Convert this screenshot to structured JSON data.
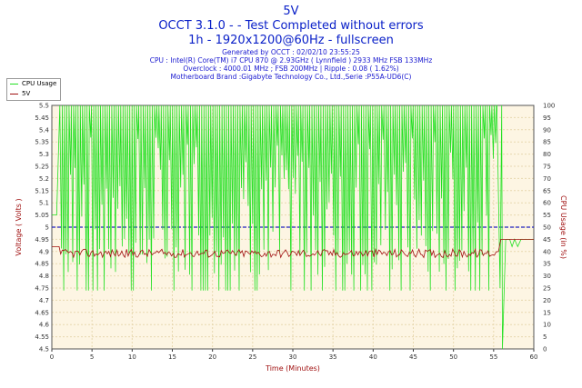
{
  "header": {
    "title_line1": "5V",
    "title_line2": "OCCT 3.1.0 -  - Test Completed without errors",
    "title_line3": "1h - 1920x1200@60Hz - fullscreen",
    "generated": "Generated by OCCT : 02/02/10 23:55:25",
    "cpu": "CPU : Intel(R) Core(TM) i7 CPU 870 @ 2.93GHz ( Lynnfield ) 2933 MHz FSB 133MHz",
    "overclock": "Overclock : 4000.01 MHz ; FSB 200MHz | Ripple : 0.08 ( 1.62%)",
    "motherboard": "Motherboard Brand :Gigabyte Technology Co., Ltd.,Serie :P55A-UD6(C)"
  },
  "legend": {
    "cpu_label": "CPU Usage",
    "v_label": "5V"
  },
  "colors": {
    "cpu": "#22e022",
    "voltage": "#a01010",
    "reference": "#2020c0",
    "left_axis": "#a01010",
    "plot_bg": "#fdf5e3",
    "grid": "#e8d8b0"
  },
  "chart_data": {
    "type": "line",
    "title": "5V",
    "xlabel": "Time (Minutes)",
    "ylabel_left": "Voltage ( Volts )",
    "ylabel_right": "CPU Usage (in %)",
    "xlim": [
      0,
      60
    ],
    "ylim_left": [
      4.5,
      5.5
    ],
    "ylim_right": [
      0,
      100
    ],
    "x_ticks": [
      "0",
      "5",
      "10",
      "15",
      "20",
      "25",
      "30",
      "35",
      "40",
      "45",
      "50",
      "55",
      "60"
    ],
    "y_left_ticks": [
      "4.5",
      "4.55",
      "4.6",
      "4.65",
      "4.7",
      "4.75",
      "4.8",
      "4.85",
      "4.9",
      "4.95",
      "5",
      "5.05",
      "5.1",
      "5.15",
      "5.2",
      "5.25",
      "5.3",
      "5.35",
      "5.4",
      "5.45",
      "5.5"
    ],
    "y_right_ticks": [
      "0",
      "5",
      "10",
      "15",
      "20",
      "25",
      "30",
      "35",
      "40",
      "45",
      "50",
      "55",
      "60",
      "65",
      "70",
      "75",
      "80",
      "85",
      "90",
      "95",
      "100"
    ],
    "grid": true,
    "legend_position": "top-left",
    "reference_line": 5.0,
    "series": [
      {
        "name": "CPU Usage",
        "axis": "right",
        "x": [
          0,
          1,
          1.6,
          2.2,
          55.4,
          55.8,
          56.1,
          56.5,
          60
        ],
        "y": [
          55,
          100,
          25,
          100,
          100,
          25,
          0,
          45,
          45
        ],
        "pattern": "oscillates 100 to 25 from 1.5 to 55.5 min"
      },
      {
        "name": "5V",
        "axis": "left",
        "x": [
          0,
          1,
          2,
          30,
          55,
          55.6,
          56.1,
          60
        ],
        "y": [
          4.92,
          4.92,
          4.89,
          4.89,
          4.89,
          4.9,
          4.95,
          4.95
        ],
        "pattern": "noisy 4.87 to 4.91 from 1 to 55.5 min"
      }
    ]
  }
}
